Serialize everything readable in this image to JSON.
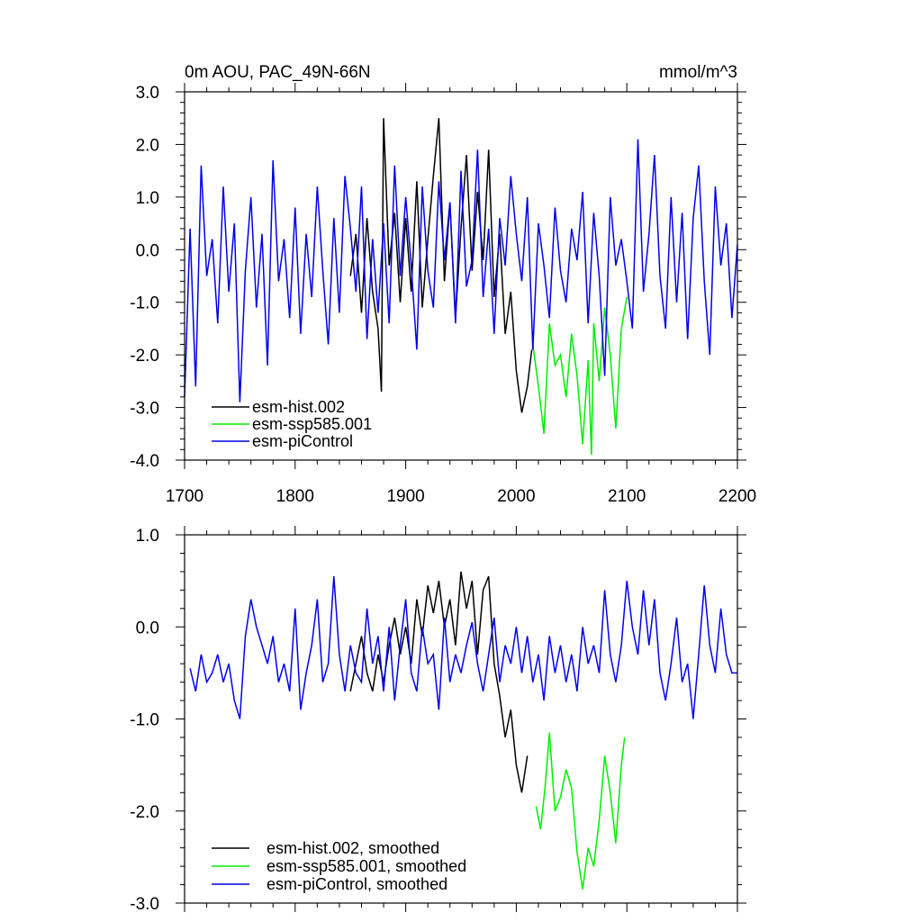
{
  "chart_data": [
    {
      "type": "line",
      "title": "0m AOU, PAC_49N-66N",
      "units": "mmol/m^3",
      "xlim": [
        1700,
        2200
      ],
      "ylim": [
        -4.0,
        3.0
      ],
      "xticks": [
        1700,
        1800,
        1900,
        2000,
        2100,
        2200
      ],
      "yticks": [
        -4.0,
        -3.0,
        -2.0,
        -1.0,
        0.0,
        1.0,
        2.0,
        3.0
      ],
      "xtick_labels": [
        "1700",
        "1800",
        "1900",
        "2000",
        "2100",
        "2200"
      ],
      "ytick_labels": [
        "-4.0",
        "-3.0",
        "-2.0",
        "-1.0",
        "0.0",
        "1.0",
        "2.0",
        "3.0"
      ],
      "legend_position": "bottom-left",
      "series": [
        {
          "name": "esm-hist.002",
          "color": "#000000",
          "x": [
            1850,
            1855,
            1860,
            1865,
            1870,
            1875,
            1878,
            1880,
            1885,
            1890,
            1895,
            1900,
            1905,
            1910,
            1915,
            1920,
            1925,
            1930,
            1935,
            1940,
            1945,
            1950,
            1955,
            1960,
            1965,
            1970,
            1975,
            1980,
            1985,
            1990,
            1995,
            2000,
            2005,
            2010,
            2014
          ],
          "y": [
            -0.5,
            0.3,
            -1.2,
            0.6,
            -0.8,
            -1.5,
            -2.7,
            2.5,
            -0.3,
            0.7,
            -1.0,
            0.6,
            -0.8,
            1.3,
            -1.1,
            0.2,
            1.4,
            2.5,
            -0.6,
            0.9,
            -1.3,
            0.4,
            1.8,
            -0.4,
            1.1,
            -0.2,
            1.9,
            -0.9,
            0.3,
            -1.6,
            -0.8,
            -2.3,
            -3.1,
            -2.6,
            -1.9
          ]
        },
        {
          "name": "esm-ssp585.001",
          "color": "#00ee00",
          "x": [
            2015,
            2020,
            2025,
            2030,
            2035,
            2040,
            2045,
            2050,
            2055,
            2060,
            2065,
            2068,
            2070,
            2075,
            2080,
            2085,
            2090,
            2095,
            2100
          ],
          "y": [
            -1.8,
            -2.6,
            -3.5,
            -1.4,
            -2.2,
            -2.0,
            -2.8,
            -1.6,
            -2.4,
            -3.7,
            -2.1,
            -3.9,
            -1.4,
            -2.5,
            -1.1,
            -2.0,
            -3.4,
            -1.5,
            -0.9
          ]
        },
        {
          "name": "esm-piControl",
          "color": "#0000ee",
          "x": [
            1700,
            1705,
            1710,
            1715,
            1720,
            1725,
            1730,
            1735,
            1740,
            1745,
            1750,
            1755,
            1760,
            1765,
            1770,
            1775,
            1780,
            1785,
            1790,
            1795,
            1800,
            1805,
            1810,
            1815,
            1820,
            1825,
            1830,
            1835,
            1840,
            1845,
            1850,
            1855,
            1860,
            1865,
            1870,
            1875,
            1880,
            1885,
            1890,
            1895,
            1900,
            1905,
            1910,
            1915,
            1920,
            1925,
            1930,
            1935,
            1940,
            1945,
            1950,
            1955,
            1960,
            1965,
            1970,
            1975,
            1980,
            1985,
            1990,
            1995,
            2000,
            2005,
            2010,
            2015,
            2020,
            2025,
            2030,
            2035,
            2040,
            2045,
            2050,
            2055,
            2060,
            2065,
            2070,
            2075,
            2080,
            2085,
            2090,
            2095,
            2100,
            2105,
            2110,
            2115,
            2120,
            2125,
            2130,
            2135,
            2140,
            2145,
            2150,
            2155,
            2160,
            2165,
            2170,
            2175,
            2180,
            2185,
            2190,
            2195,
            2200
          ],
          "y": [
            -2.8,
            0.4,
            -2.6,
            1.6,
            -0.5,
            0.2,
            -1.4,
            1.2,
            -0.8,
            0.5,
            -2.9,
            -0.4,
            1.0,
            -1.1,
            0.3,
            -2.2,
            1.7,
            -0.6,
            0.2,
            -1.3,
            0.8,
            -1.6,
            0.3,
            -0.9,
            1.2,
            -0.4,
            -1.8,
            0.6,
            -1.2,
            1.4,
            0.4,
            -0.8,
            1.2,
            -1.7,
            0.2,
            -1.2,
            0.5,
            -1.4,
            1.6,
            -0.5,
            1.0,
            -0.3,
            -1.9,
            1.2,
            -0.4,
            -1.1,
            1.3,
            -0.2,
            0.9,
            -1.4,
            1.5,
            -0.7,
            -0.2,
            1.9,
            -0.9,
            0.4,
            -1.6,
            0.6,
            -0.3,
            1.4,
            0.3,
            -0.6,
            1.0,
            -1.9,
            0.5,
            -0.3,
            -1.3,
            0.8,
            -0.4,
            -1.0,
            0.4,
            -0.2,
            1.1,
            -1.4,
            0.7,
            -0.5,
            -2.4,
            1.0,
            -0.3,
            0.2,
            -0.6,
            -1.5,
            2.1,
            -0.8,
            0.3,
            1.8,
            -0.5,
            -1.5,
            1.0,
            -1.0,
            0.7,
            -1.7,
            0.6,
            1.6,
            -0.6,
            -2.0,
            1.2,
            -0.3,
            0.5,
            -1.3,
            0.1
          ]
        }
      ]
    },
    {
      "type": "line",
      "title": "",
      "xlim": [
        1700,
        2200
      ],
      "ylim": [
        -3.0,
        1.0
      ],
      "yticks": [
        -3.0,
        -2.0,
        -1.0,
        0.0,
        1.0
      ],
      "ytick_labels": [
        "-3.0",
        "-2.0",
        "-1.0",
        "0.0",
        "1.0"
      ],
      "legend_position": "bottom-left",
      "series": [
        {
          "name": "esm-hist.002, smoothed",
          "color": "#000000",
          "x": [
            1850,
            1855,
            1860,
            1865,
            1870,
            1875,
            1880,
            1885,
            1890,
            1895,
            1900,
            1905,
            1910,
            1915,
            1920,
            1925,
            1930,
            1935,
            1940,
            1945,
            1950,
            1955,
            1960,
            1965,
            1970,
            1975,
            1980,
            1985,
            1990,
            1995,
            2000,
            2005,
            2010
          ],
          "y": [
            -0.7,
            -0.4,
            -0.1,
            -0.5,
            -0.7,
            -0.3,
            -0.6,
            -0.2,
            0.1,
            -0.3,
            0.0,
            -0.4,
            0.3,
            -0.1,
            0.45,
            0.15,
            0.5,
            0.0,
            0.3,
            -0.2,
            0.6,
            0.2,
            0.5,
            -0.3,
            0.4,
            0.55,
            -0.4,
            -0.75,
            -1.2,
            -0.9,
            -1.5,
            -1.8,
            -1.4
          ]
        },
        {
          "name": "esm-ssp585.001, smoothed",
          "color": "#00ee00",
          "x": [
            2018,
            2022,
            2026,
            2030,
            2035,
            2040,
            2045,
            2050,
            2055,
            2060,
            2065,
            2070,
            2075,
            2080,
            2085,
            2090,
            2095,
            2098
          ],
          "y": [
            -1.95,
            -2.2,
            -1.75,
            -1.15,
            -2.0,
            -1.85,
            -1.55,
            -1.75,
            -2.45,
            -2.85,
            -2.4,
            -2.6,
            -2.1,
            -1.4,
            -1.8,
            -2.35,
            -1.5,
            -1.2
          ]
        },
        {
          "name": "esm-piControl, smoothed",
          "color": "#0000ee",
          "x": [
            1705,
            1710,
            1715,
            1720,
            1725,
            1730,
            1735,
            1740,
            1745,
            1750,
            1755,
            1760,
            1765,
            1770,
            1775,
            1780,
            1785,
            1790,
            1795,
            1800,
            1805,
            1810,
            1815,
            1820,
            1825,
            1830,
            1835,
            1840,
            1845,
            1850,
            1855,
            1860,
            1865,
            1870,
            1875,
            1880,
            1885,
            1890,
            1895,
            1900,
            1905,
            1910,
            1915,
            1920,
            1925,
            1930,
            1935,
            1940,
            1945,
            1950,
            1955,
            1960,
            1965,
            1970,
            1975,
            1980,
            1985,
            1990,
            1995,
            2000,
            2005,
            2010,
            2015,
            2020,
            2025,
            2030,
            2035,
            2040,
            2045,
            2050,
            2055,
            2060,
            2065,
            2070,
            2075,
            2080,
            2085,
            2090,
            2095,
            2100,
            2105,
            2110,
            2115,
            2120,
            2125,
            2130,
            2135,
            2140,
            2145,
            2150,
            2155,
            2160,
            2165,
            2170,
            2175,
            2180,
            2185,
            2190,
            2195,
            2200
          ],
          "y": [
            -0.45,
            -0.7,
            -0.3,
            -0.6,
            -0.5,
            -0.3,
            -0.6,
            -0.4,
            -0.8,
            -1.0,
            -0.1,
            0.3,
            0.0,
            -0.2,
            -0.4,
            -0.1,
            -0.6,
            -0.4,
            -0.7,
            0.2,
            -0.9,
            -0.5,
            -0.2,
            0.3,
            -0.6,
            -0.4,
            0.55,
            -0.3,
            -0.7,
            -0.2,
            -0.5,
            -0.6,
            0.2,
            -0.4,
            -0.1,
            -0.7,
            0.0,
            -0.8,
            -0.2,
            0.3,
            -0.5,
            -0.7,
            0.0,
            -0.4,
            -0.3,
            -0.9,
            0.1,
            -0.6,
            -0.3,
            -0.5,
            -0.2,
            0.05,
            -0.4,
            -0.7,
            -0.3,
            0.1,
            -0.6,
            -0.2,
            -0.4,
            0.0,
            -0.5,
            -0.1,
            -0.6,
            -0.3,
            -0.8,
            -0.1,
            -0.5,
            -0.2,
            -0.6,
            -0.3,
            -0.7,
            0.0,
            -0.4,
            -0.2,
            -0.5,
            0.4,
            -0.3,
            -0.6,
            -0.2,
            0.5,
            0.0,
            -0.3,
            0.4,
            -0.2,
            0.3,
            -0.5,
            -0.8,
            -0.4,
            0.1,
            -0.6,
            -0.4,
            -1.0,
            -0.3,
            0.45,
            -0.2,
            -0.5,
            0.2,
            -0.3,
            -0.5,
            -0.5
          ]
        }
      ]
    }
  ]
}
